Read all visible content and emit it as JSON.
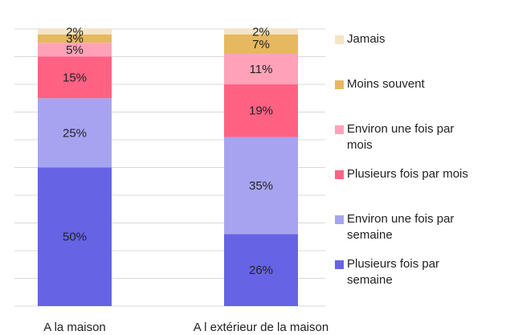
{
  "chart_data": {
    "type": "stacked_bar",
    "categories": [
      "A la maison",
      "A l extérieur de la maison"
    ],
    "ylim": [
      0,
      100
    ],
    "yticks": [
      0,
      10,
      20,
      30,
      40,
      50,
      60,
      70,
      80,
      90,
      100
    ],
    "grid": true,
    "legend": "right",
    "series": [
      {
        "name": "Plusieurs fois par semaine",
        "color": "#6664e4",
        "values": [
          50,
          26
        ],
        "value_labels": [
          "50%",
          "26%"
        ]
      },
      {
        "name": "Environ une fois par semaine",
        "color": "#a6a4f0",
        "values": [
          25,
          35
        ],
        "value_labels": [
          "25%",
          "35%"
        ]
      },
      {
        "name": "Plusieurs fois par mois",
        "color": "#ff6283",
        "values": [
          15,
          19
        ],
        "value_labels": [
          "15%",
          "19%"
        ]
      },
      {
        "name": "Environ une fois par mois",
        "color": "#ffa2b8",
        "values": [
          5,
          11
        ],
        "value_labels": [
          "5%",
          "11%"
        ]
      },
      {
        "name": "Moins souvent",
        "color": "#e6b860",
        "values": [
          3,
          7
        ],
        "value_labels": [
          "3%",
          "7%"
        ]
      },
      {
        "name": "Jamais",
        "color": "#f6e4c2",
        "values": [
          2,
          2
        ],
        "value_labels": [
          "2%",
          "2%"
        ]
      }
    ]
  }
}
